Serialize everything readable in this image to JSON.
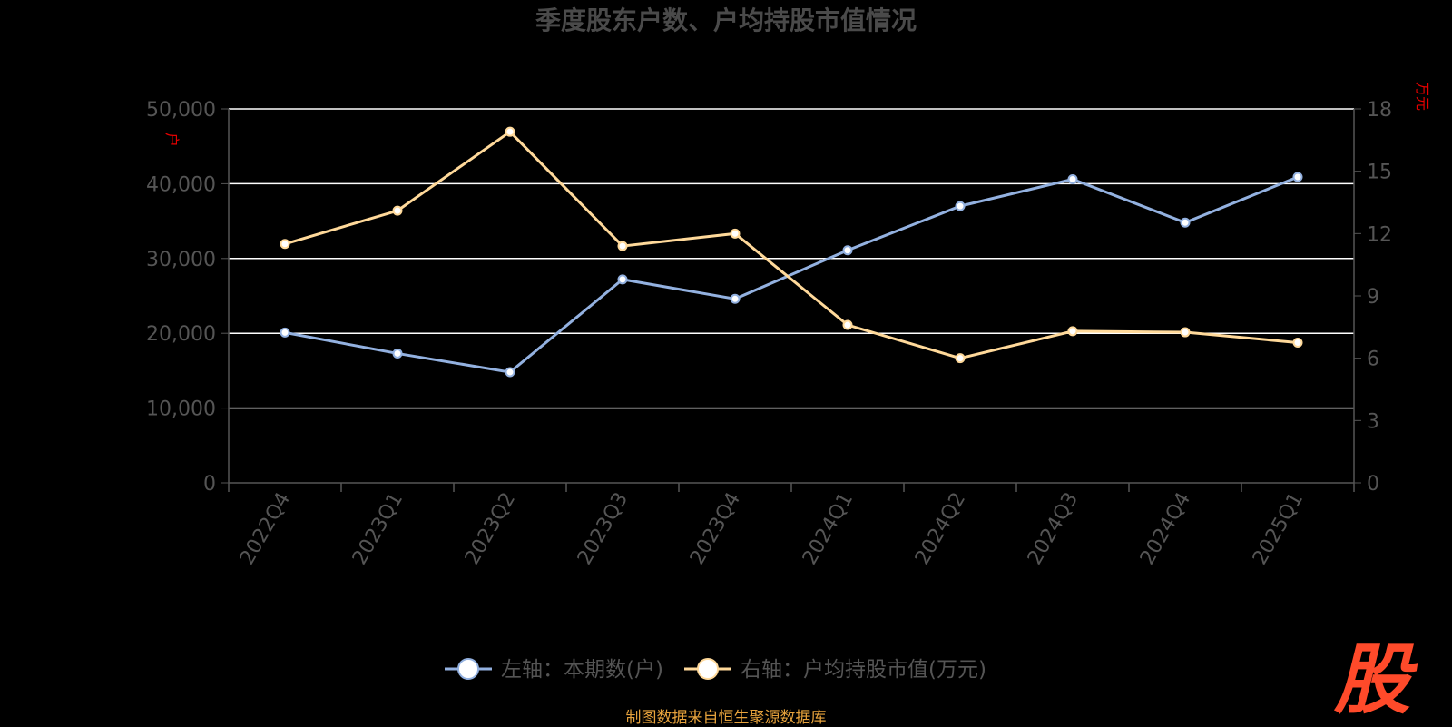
{
  "chart_data": {
    "type": "line",
    "title": "季度股东户数、户均持股市值情况",
    "categories": [
      "2022Q4",
      "2023Q1",
      "2023Q2",
      "2023Q3",
      "2023Q4",
      "2024Q1",
      "2024Q2",
      "2024Q3",
      "2024Q4",
      "2025Q1"
    ],
    "y_left": {
      "label": "户",
      "ylim": [
        0,
        50000
      ],
      "ticks": [
        "0",
        "10,000",
        "20,000",
        "30,000",
        "40,000",
        "50,000"
      ]
    },
    "y_right": {
      "label": "万元",
      "ylim": [
        0,
        18
      ],
      "ticks": [
        "0",
        "3",
        "6",
        "9",
        "12",
        "15",
        "18"
      ]
    },
    "series": [
      {
        "name": "左轴：本期数(户)",
        "axis": "left",
        "color": "#93b1e0",
        "values": [
          20100,
          17300,
          14800,
          27200,
          24600,
          31100,
          37000,
          40600,
          34800,
          40900
        ]
      },
      {
        "name": "右轴：户均持股市值(万元)",
        "axis": "right",
        "color": "#ffd99a",
        "values": [
          11.5,
          13.1,
          16.9,
          11.4,
          12.0,
          7.6,
          6.0,
          7.3,
          7.25,
          6.75
        ]
      }
    ],
    "grid": true,
    "legend": "bottom"
  },
  "footer": {
    "source": "制图数据来自恒生聚源数据库"
  },
  "watermark": {
    "text": "股",
    "color": "#ff4a2a"
  }
}
